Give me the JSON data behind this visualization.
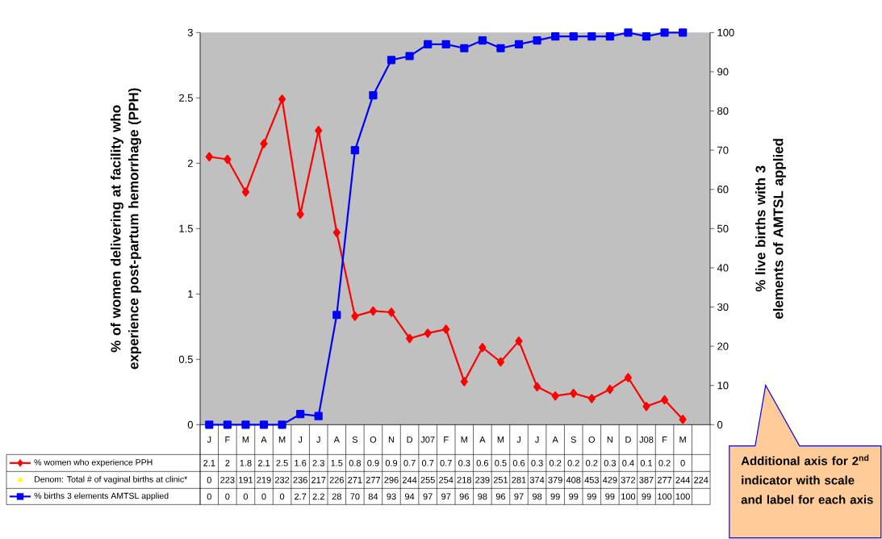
{
  "chart_data": {
    "type": "line",
    "categories": [
      "J",
      "F",
      "M",
      "A",
      "M",
      "J",
      "J",
      "A",
      "S",
      "O",
      "N",
      "D",
      "J07",
      "F",
      "M",
      "A",
      "M",
      "J",
      "J",
      "A",
      "S",
      "O",
      "N",
      "D",
      "J08",
      "F",
      "M",
      null
    ],
    "series": [
      {
        "name": "% women who experience PPH",
        "color": "#ff0000",
        "marker": "diamond",
        "values": [
          2.05,
          2.03,
          1.78,
          2.15,
          2.49,
          1.61,
          2.25,
          1.47,
          0.83,
          0.87,
          0.86,
          0.66,
          0.7,
          0.73,
          0.33,
          0.59,
          0.48,
          0.64,
          0.29,
          0.22,
          0.24,
          0.2,
          0.27,
          0.36,
          0.14,
          0.19,
          0.04,
          null
        ],
        "value_labels": [
          "2.1",
          "2",
          "1.8",
          "2.1",
          "2.5",
          "1.6",
          "2.3",
          "1.5",
          "0.8",
          "0.9",
          "0.9",
          "0.7",
          "0.7",
          "0.7",
          "0.3",
          "0.6",
          "0.5",
          "0.6",
          "0.3",
          "0.2",
          "0.2",
          "0.2",
          "0.3",
          "0.4",
          "0.1",
          "0.2",
          "0",
          null
        ]
      },
      {
        "name": "Denom: Total # of vaginal births at clinic*",
        "type": "scatter",
        "color": "#ffff00",
        "marker": "triangle",
        "values": [
          null,
          null,
          null,
          null,
          null,
          null,
          null,
          null,
          null,
          null,
          null,
          null,
          null,
          null,
          null,
          null,
          null,
          null,
          null,
          null,
          null,
          null,
          null,
          null,
          null,
          null,
          null,
          null
        ],
        "value_labels": [
          "0",
          "223",
          "191",
          "219",
          "232",
          "236",
          "217",
          "226",
          "271",
          "277",
          "296",
          "244",
          "255",
          "254",
          "218",
          "239",
          "251",
          "281",
          "374",
          "379",
          "408",
          "453",
          "429",
          "372",
          "387",
          "277",
          "244",
          "224"
        ]
      },
      {
        "name": "% births 3 elements AMTSL applied",
        "color": "#0000ff",
        "marker": "square",
        "axis": "y2",
        "values": [
          0,
          0,
          0,
          0,
          0,
          2.7,
          2.2,
          28,
          70,
          84,
          93,
          94,
          97,
          97,
          96,
          98,
          96,
          97,
          98,
          99,
          99,
          99,
          99,
          100,
          99,
          100,
          100,
          null
        ],
        "value_labels": [
          "0",
          "0",
          "0",
          "0",
          "0",
          "2.7",
          "2.2",
          "28",
          "70",
          "84",
          "93",
          "94",
          "97",
          "97",
          "96",
          "98",
          "96",
          "97",
          "98",
          "99",
          "99",
          "99",
          "99",
          "100",
          "99",
          "100",
          "100",
          null
        ]
      }
    ],
    "ylim": [
      0,
      3
    ],
    "yticks": [
      0,
      0.5,
      1,
      1.5,
      2,
      2.5,
      3
    ],
    "y2lim": [
      0,
      100
    ],
    "y2ticks": [
      0,
      10,
      20,
      30,
      40,
      50,
      60,
      70,
      80,
      90,
      100
    ],
    "ylabel": "% of women delivering at facility who experience post-partum hemorrhage (PPH)",
    "y2label": "% live births with 3 elements of AMTSL applied",
    "annotations": [
      "Additional axis for 2$^{nd}$ indicator with scale and label for each axis"
    ],
    "legend": "bottom left"
  }
}
